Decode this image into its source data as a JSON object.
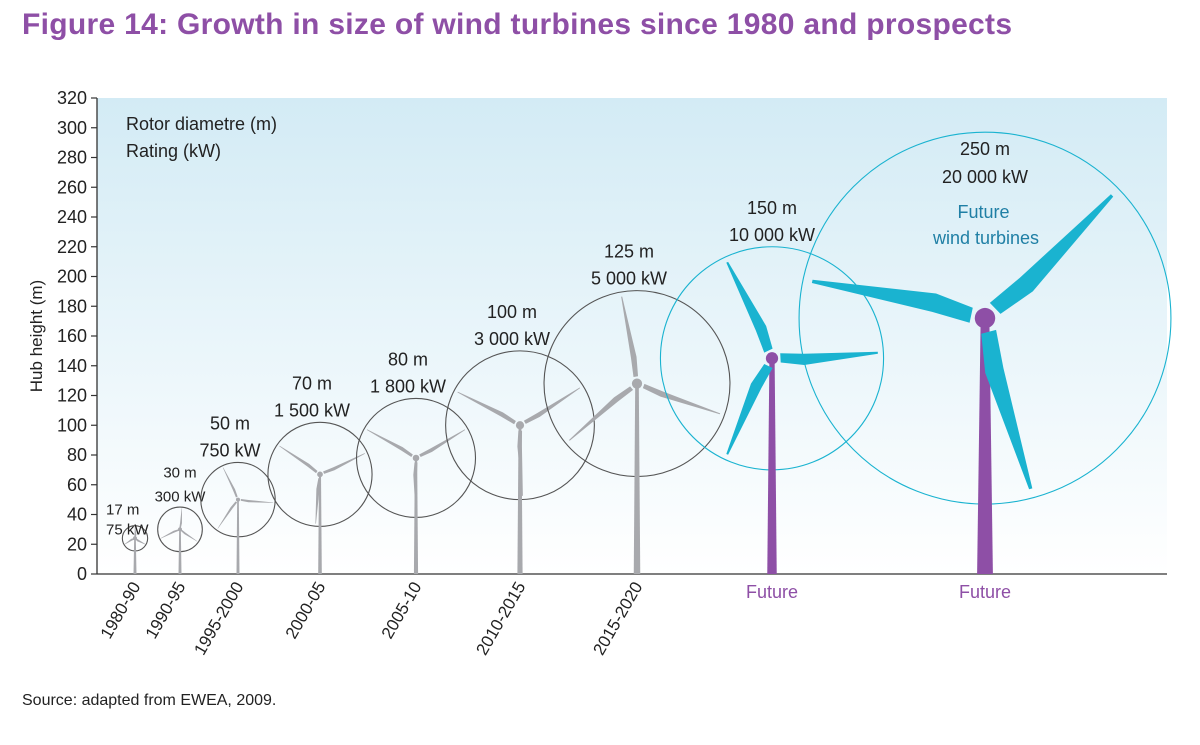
{
  "title": "Figure 14: Growth in size of wind turbines since 1980 and prospects",
  "source": "Source: adapted from EWEA, 2009.",
  "chart_data": {
    "type": "scatter",
    "ylabel": "Hub height (m)",
    "ylim": [
      0,
      320
    ],
    "yticks": [
      0,
      20,
      40,
      60,
      80,
      100,
      120,
      140,
      160,
      180,
      200,
      220,
      240,
      260,
      280,
      300,
      320
    ],
    "legend": {
      "line1": "Rotor diametre (m)",
      "line2": "Rating (kW)"
    },
    "future_label": "Future wind turbines",
    "turbines": [
      {
        "period": "1980-90",
        "hub_height": 24,
        "diameter_label": "17 m",
        "rating_label": "75 kW",
        "future": false
      },
      {
        "period": "1990-95",
        "hub_height": 30,
        "diameter_label": "30 m",
        "rating_label": "300 kW",
        "future": false
      },
      {
        "period": "1995-2000",
        "hub_height": 50,
        "diameter_label": "50 m",
        "rating_label": "750 kW",
        "future": false
      },
      {
        "period": "2000-05",
        "hub_height": 67,
        "diameter_label": "70 m",
        "rating_label": "1 500 kW",
        "future": false
      },
      {
        "period": "2005-10",
        "hub_height": 78,
        "diameter_label": "80 m",
        "rating_label": "1 800 kW",
        "future": false
      },
      {
        "period": "2010-2015",
        "hub_height": 100,
        "diameter_label": "100 m",
        "rating_label": "3 000 kW",
        "future": false
      },
      {
        "period": "2015-2020",
        "hub_height": 128,
        "diameter_label": "125 m",
        "rating_label": "5 000 kW",
        "future": false
      },
      {
        "period": "Future",
        "hub_height": 145,
        "diameter_label": "150 m",
        "rating_label": "10 000 kW",
        "future": true
      },
      {
        "period": "Future",
        "hub_height": 172,
        "diameter_label": "250 m",
        "rating_label": "20 000 kW",
        "future": true
      }
    ],
    "colors": {
      "past_tower": "#a8a9ad",
      "circle": "#555555",
      "future_tower": "#8e4fa6",
      "future_blade": "#1ab3d0",
      "future_circle": "#1ab3d0",
      "future_text": "#1f7fa5",
      "sky_top": "#d3ebf5",
      "sky_bottom": "#ffffff"
    }
  }
}
